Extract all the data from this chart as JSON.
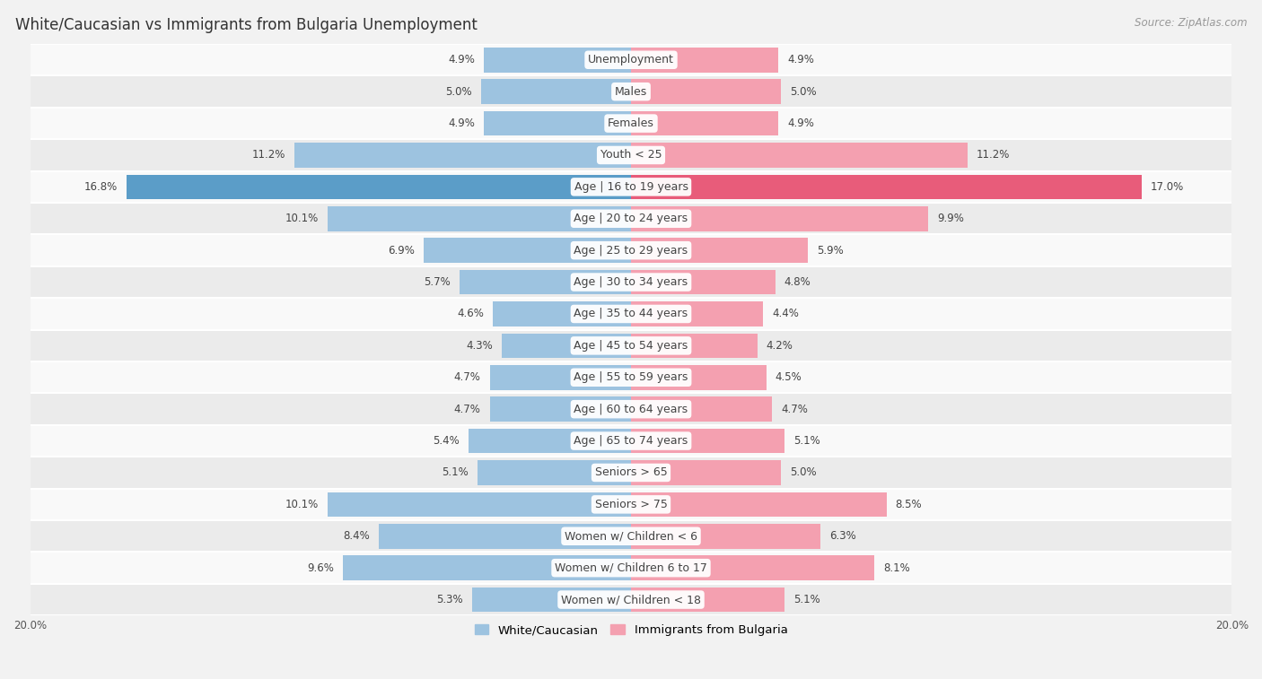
{
  "title": "White/Caucasian vs Immigrants from Bulgaria Unemployment",
  "source": "Source: ZipAtlas.com",
  "categories": [
    "Unemployment",
    "Males",
    "Females",
    "Youth < 25",
    "Age | 16 to 19 years",
    "Age | 20 to 24 years",
    "Age | 25 to 29 years",
    "Age | 30 to 34 years",
    "Age | 35 to 44 years",
    "Age | 45 to 54 years",
    "Age | 55 to 59 years",
    "Age | 60 to 64 years",
    "Age | 65 to 74 years",
    "Seniors > 65",
    "Seniors > 75",
    "Women w/ Children < 6",
    "Women w/ Children 6 to 17",
    "Women w/ Children < 18"
  ],
  "white_values": [
    4.9,
    5.0,
    4.9,
    11.2,
    16.8,
    10.1,
    6.9,
    5.7,
    4.6,
    4.3,
    4.7,
    4.7,
    5.4,
    5.1,
    10.1,
    8.4,
    9.6,
    5.3
  ],
  "immigrant_values": [
    4.9,
    5.0,
    4.9,
    11.2,
    17.0,
    9.9,
    5.9,
    4.8,
    4.4,
    4.2,
    4.5,
    4.7,
    5.1,
    5.0,
    8.5,
    6.3,
    8.1,
    5.1
  ],
  "white_color": "#9dc3e0",
  "immigrant_color": "#f4a0b0",
  "highlight_white_color": "#5b9dc8",
  "highlight_immigrant_color": "#e85c7a",
  "bar_height": 0.78,
  "xlim": 20.0,
  "background_color": "#f2f2f2",
  "row_light_color": "#f9f9f9",
  "row_dark_color": "#ebebeb",
  "row_separator_color": "#ffffff",
  "legend_white": "White/Caucasian",
  "legend_immigrant": "Immigrants from Bulgaria",
  "title_fontsize": 12,
  "source_fontsize": 8.5,
  "label_fontsize": 9,
  "value_fontsize": 8.5,
  "axis_label_fontsize": 8.5
}
